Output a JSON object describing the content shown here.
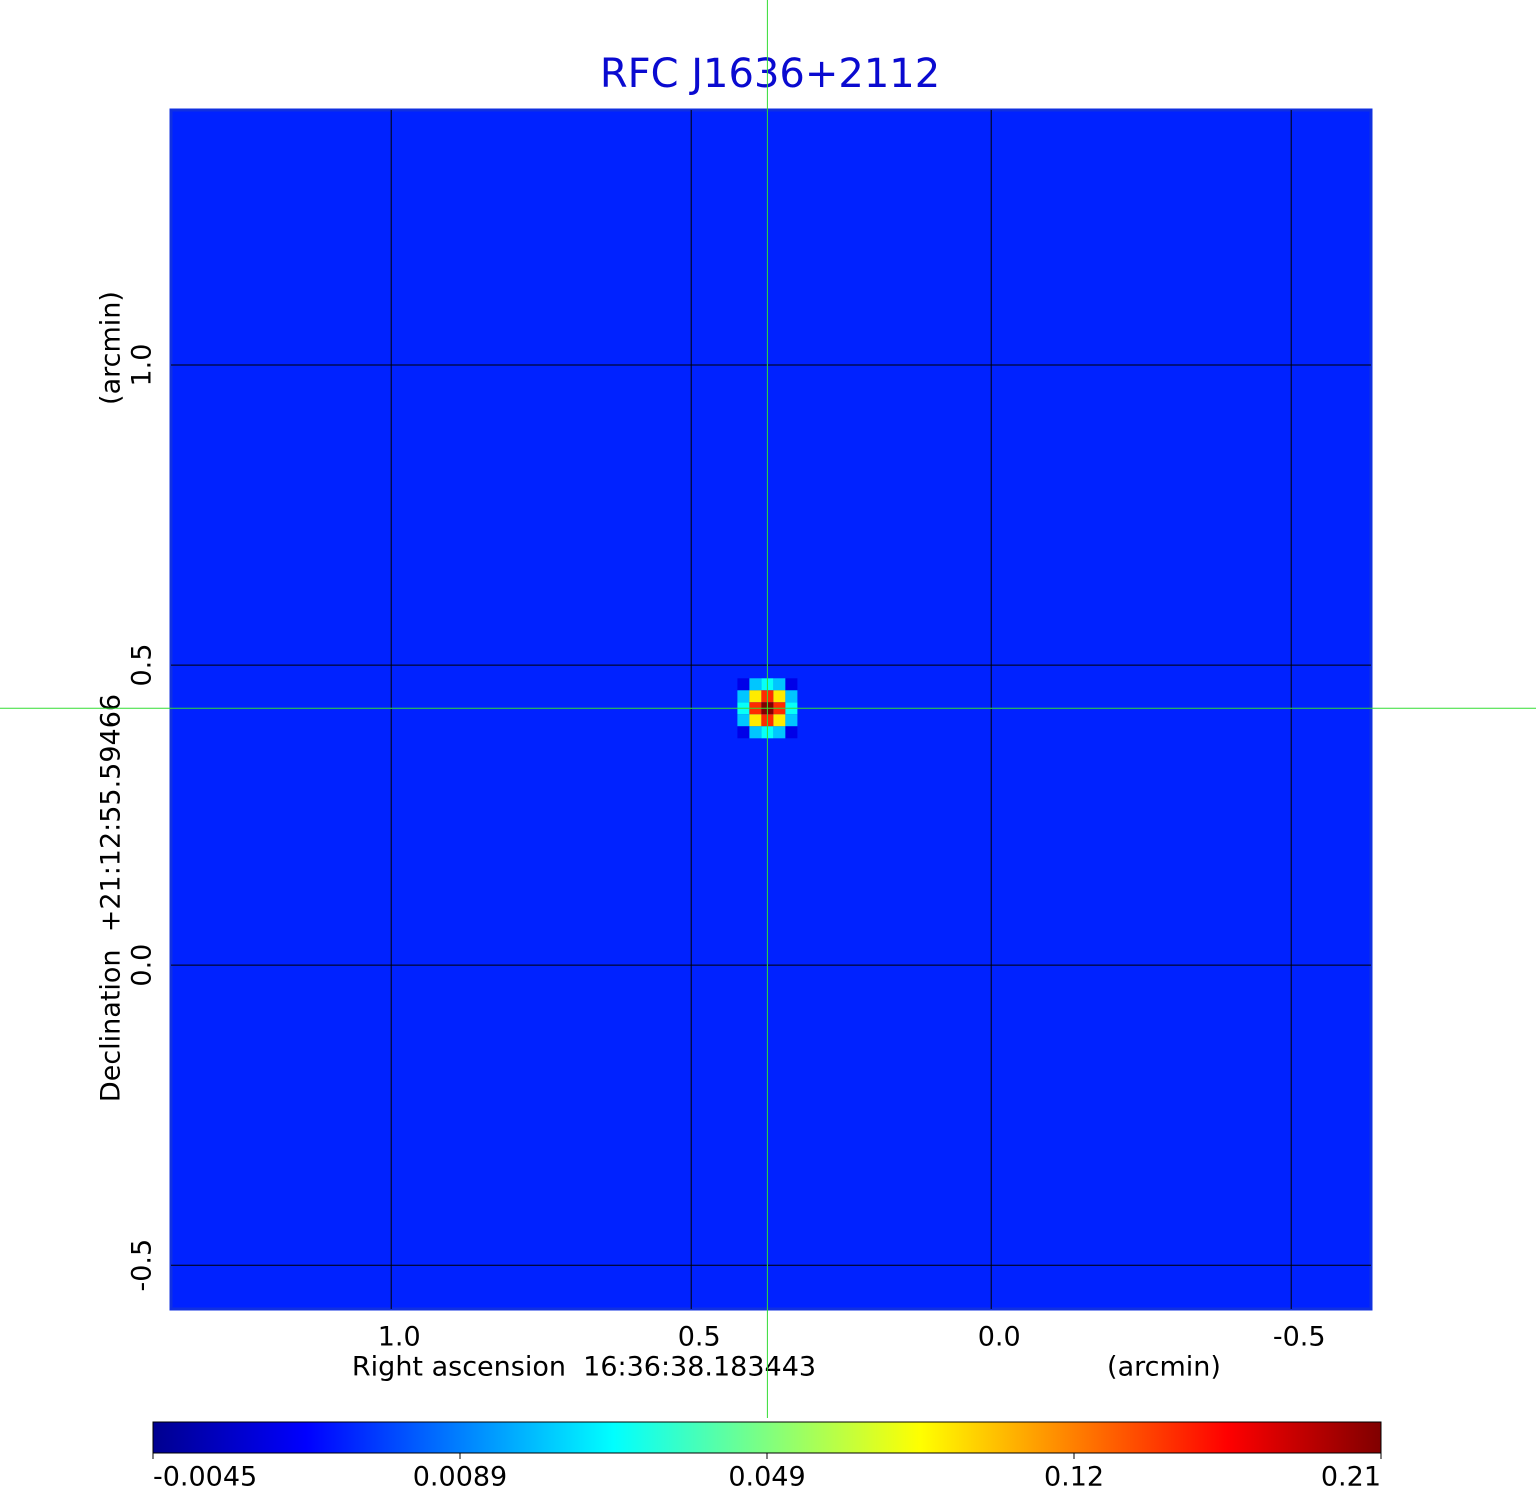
{
  "chart_data": {
    "type": "image",
    "title": "RFC J1636+2112",
    "xlabel": "Right ascension  16:36:38.183443",
    "xunit": "(arcmin)",
    "ylabel": "Declination  +21:12:55.59466",
    "yunit": "(arcmin)",
    "xlim": [
      1.367,
      -0.633
    ],
    "ylim": [
      -0.573,
      1.425
    ],
    "xticks": [
      {
        "value": 1,
        "label": "1.0"
      },
      0.5,
      {
        "value": 0,
        "label": "0.0"
      },
      -0.5
    ],
    "yticks": [
      -0.5,
      {
        "value": 0,
        "label": "0.0"
      },
      0.5,
      {
        "value": 1,
        "label": "1.0"
      }
    ],
    "grid": true,
    "crosshair": {
      "x": 0.373,
      "y": 0.428,
      "color": "#33dd33"
    },
    "image": {
      "background": 0.004,
      "center_x": 0.373,
      "center_y": 0.428,
      "cell": 0.02,
      "cells": [
        [
          0.001,
          0.02,
          0.03,
          0.02,
          0.001
        ],
        [
          0.02,
          0.09,
          0.15,
          0.09,
          0.02
        ],
        [
          0.03,
          0.15,
          0.21,
          0.15,
          0.03
        ],
        [
          0.02,
          0.09,
          0.15,
          0.09,
          0.02
        ],
        [
          0.001,
          0.02,
          0.03,
          0.02,
          0.001
        ]
      ]
    },
    "colorbar_ticks": [
      -0.0045,
      0.0089,
      0.049,
      0.12,
      0.21
    ]
  }
}
